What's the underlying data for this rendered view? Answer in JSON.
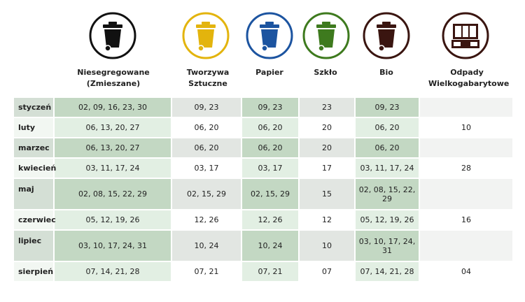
{
  "columns": [
    {
      "id": "mixed",
      "label": "Niesegregowane (Zmieszane)",
      "color": "#111111",
      "icon": "trash-bin-mixed-icon"
    },
    {
      "id": "plastic",
      "label": "Tworzywa Sztuczne",
      "color": "#e3b40d",
      "icon": "trash-bin-plastic-icon"
    },
    {
      "id": "paper",
      "label": "Papier",
      "color": "#1c54a0",
      "icon": "trash-bin-paper-icon"
    },
    {
      "id": "glass",
      "label": "Szkło",
      "color": "#3e7a1e",
      "icon": "trash-bin-glass-icon"
    },
    {
      "id": "bio",
      "label": "Bio",
      "color": "#3a1510",
      "icon": "trash-bin-bio-icon"
    },
    {
      "id": "bulky",
      "label": "Odpady Wielkogabarytowe",
      "color": "#3a1510",
      "icon": "furniture-icon"
    }
  ],
  "rows": [
    {
      "month": "styczeń",
      "mixed": "02, 09, 16, 23, 30",
      "plastic": "09, 23",
      "paper": "09, 23",
      "glass": "23",
      "bio": "09, 23",
      "bulky": ""
    },
    {
      "month": "luty",
      "mixed": "06, 13, 20, 27",
      "plastic": "06, 20",
      "paper": "06, 20",
      "glass": "20",
      "bio": "06, 20",
      "bulky": "10"
    },
    {
      "month": "marzec",
      "mixed": "06, 13, 20, 27",
      "plastic": "06, 20",
      "paper": "06, 20",
      "glass": "20",
      "bio": "06, 20",
      "bulky": ""
    },
    {
      "month": "kwiecień",
      "mixed": "03, 11, 17, 24",
      "plastic": "03, 17",
      "paper": "03, 17",
      "glass": "17",
      "bio": "03, 11, 17, 24",
      "bulky": "28"
    },
    {
      "month": "maj",
      "mixed": "02, 08, 15, 22, 29",
      "plastic": "02, 15, 29",
      "paper": "02, 15, 29",
      "glass": "15",
      "bio": "02, 08, 15, 22, 29",
      "bulky": ""
    },
    {
      "month": "czerwiec",
      "mixed": "05, 12, 19, 26",
      "plastic": "12, 26",
      "paper": "12, 26",
      "glass": "12",
      "bio": "05, 12, 19, 26",
      "bulky": "16"
    },
    {
      "month": "lipiec",
      "mixed": "03, 10, 17, 24, 31",
      "plastic": "10, 24",
      "paper": "10, 24",
      "glass": "10",
      "bio": "03, 10, 17, 24, 31",
      "bulky": ""
    },
    {
      "month": "sierpień",
      "mixed": "07, 14, 21, 28",
      "plastic": "07, 21",
      "paper": "07, 21",
      "glass": "07",
      "bio": "07, 14, 21, 28",
      "bulky": "04"
    }
  ]
}
